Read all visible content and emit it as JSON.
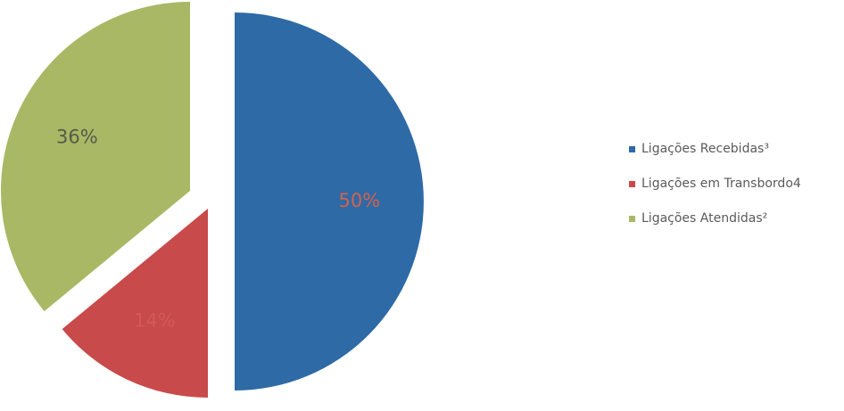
{
  "chart_data": {
    "type": "pie",
    "exploded": true,
    "legend_position": "right",
    "slices": [
      {
        "name": "Ligações Recebidas³",
        "value": 50,
        "label": "50%",
        "color": "#2e6aa6",
        "label_color": "#d3624d"
      },
      {
        "name": "Ligações em Transbordo4",
        "value": 14,
        "label": "14%",
        "color": "#c94a4a",
        "label_color": "#d05a5a"
      },
      {
        "name": "Ligações Atendidas²",
        "value": 36,
        "label": "36%",
        "color": "#a8b865",
        "label_color": "#555a4a"
      }
    ]
  }
}
